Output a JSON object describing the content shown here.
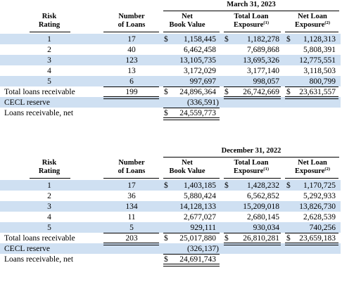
{
  "tables": [
    {
      "period": "March 31, 2023",
      "headers": {
        "rating": [
          "Risk",
          "Rating"
        ],
        "loans": [
          "Number",
          "of Loans"
        ],
        "nbv": [
          "Net",
          "Book Value"
        ],
        "tle": [
          "Total Loan",
          "Exposure",
          "(1)"
        ],
        "nle": [
          "Net Loan",
          "Exposure",
          "(2)"
        ]
      },
      "rows": [
        {
          "rating": "1",
          "loans": "17",
          "nbv_sym": "$",
          "nbv": "1,158,445",
          "tle_sym": "$",
          "tle": "1,182,278",
          "nle_sym": "$",
          "nle": "1,128,313"
        },
        {
          "rating": "2",
          "loans": "40",
          "nbv_sym": "",
          "nbv": "6,462,458",
          "tle_sym": "",
          "tle": "7,689,868",
          "nle_sym": "",
          "nle": "5,808,391"
        },
        {
          "rating": "3",
          "loans": "123",
          "nbv_sym": "",
          "nbv": "13,105,735",
          "tle_sym": "",
          "tle": "13,695,326",
          "nle_sym": "",
          "nle": "12,775,551"
        },
        {
          "rating": "4",
          "loans": "13",
          "nbv_sym": "",
          "nbv": "3,172,029",
          "tle_sym": "",
          "tle": "3,177,140",
          "nle_sym": "",
          "nle": "3,118,503"
        },
        {
          "rating": "5",
          "loans": "6",
          "nbv_sym": "",
          "nbv": "997,697",
          "tle_sym": "",
          "tle": "998,057",
          "nle_sym": "",
          "nle": "800,799"
        }
      ],
      "total": {
        "label": "Total loans receivable",
        "loans": "199",
        "nbv_sym": "$",
        "nbv": "24,896,364",
        "tle_sym": "$",
        "tle": "26,742,669",
        "nle_sym": "$",
        "nle": "23,631,557"
      },
      "cecl": {
        "label": "CECL reserve",
        "nbv": "(336,591)"
      },
      "net": {
        "label": "Loans receivable, net",
        "nbv_sym": "$",
        "nbv": "24,559,773"
      }
    },
    {
      "period": "December 31, 2022",
      "headers": {
        "rating": [
          "Risk",
          "Rating"
        ],
        "loans": [
          "Number",
          "of Loans"
        ],
        "nbv": [
          "Net",
          "Book Value"
        ],
        "tle": [
          "Total Loan",
          "Exposure",
          "(1)"
        ],
        "nle": [
          "Net Loan",
          "Exposure",
          "(2)"
        ]
      },
      "rows": [
        {
          "rating": "1",
          "loans": "17",
          "nbv_sym": "$",
          "nbv": "1,403,185",
          "tle_sym": "$",
          "tle": "1,428,232",
          "nle_sym": "$",
          "nle": "1,170,725"
        },
        {
          "rating": "2",
          "loans": "36",
          "nbv_sym": "",
          "nbv": "5,880,424",
          "tle_sym": "",
          "tle": "6,562,852",
          "nle_sym": "",
          "nle": "5,292,933"
        },
        {
          "rating": "3",
          "loans": "134",
          "nbv_sym": "",
          "nbv": "14,128,133",
          "tle_sym": "",
          "tle": "15,209,018",
          "nle_sym": "",
          "nle": "13,826,730"
        },
        {
          "rating": "4",
          "loans": "11",
          "nbv_sym": "",
          "nbv": "2,677,027",
          "tle_sym": "",
          "tle": "2,680,145",
          "nle_sym": "",
          "nle": "2,628,539"
        },
        {
          "rating": "5",
          "loans": "5",
          "nbv_sym": "",
          "nbv": "929,111",
          "tle_sym": "",
          "tle": "930,034",
          "nle_sym": "",
          "nle": "740,256"
        }
      ],
      "total": {
        "label": "Total loans receivable",
        "loans": "203",
        "nbv_sym": "$",
        "nbv": "25,017,880",
        "tle_sym": "$",
        "tle": "26,810,281",
        "nle_sym": "$",
        "nle": "23,659,183"
      },
      "cecl": {
        "label": "CECL reserve",
        "nbv": "(326,137)"
      },
      "net": {
        "label": "Loans receivable, net",
        "nbv_sym": "$",
        "nbv": "24,691,743"
      }
    }
  ],
  "colors": {
    "band": "#cfe0f2",
    "text": "#000000"
  }
}
